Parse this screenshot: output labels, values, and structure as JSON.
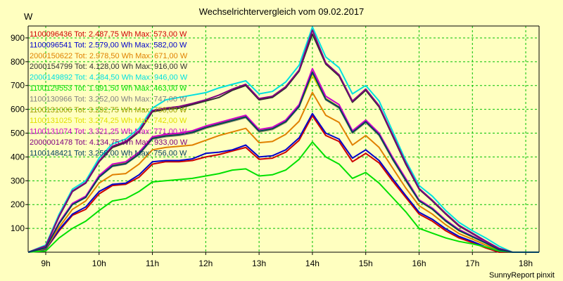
{
  "chart_data": {
    "type": "line",
    "title": "Wechselrichtervergleich vom 09.02.2017",
    "ylabel": "W",
    "ylim": [
      0,
      950
    ],
    "xlim": [
      8.67,
      18.25
    ],
    "y_ticks": [
      100,
      200,
      300,
      400,
      500,
      600,
      700,
      800,
      900
    ],
    "x_ticks": [
      9,
      10,
      11,
      12,
      13,
      14,
      15,
      16,
      17,
      18
    ],
    "x_tick_labels": [
      "9h",
      "10h",
      "11h",
      "12h",
      "13h",
      "14h",
      "15h",
      "16h",
      "17h",
      "18h"
    ],
    "grid": true,
    "legend_position": "top-left",
    "footer": "SunnyReport pinxit",
    "x": [
      8.67,
      9.0,
      9.25,
      9.5,
      9.75,
      10.0,
      10.25,
      10.5,
      10.75,
      11.0,
      11.25,
      11.5,
      11.75,
      12.0,
      12.25,
      12.5,
      12.75,
      13.0,
      13.25,
      13.5,
      13.75,
      14.0,
      14.25,
      14.5,
      14.75,
      15.0,
      15.25,
      15.5,
      15.75,
      16.0,
      16.25,
      16.5,
      16.75,
      17.0,
      17.25,
      17.5,
      17.75,
      18.0,
      18.25
    ],
    "series": [
      {
        "name": "1100096436 Tot: 2.487,75 Wh Max: 573,00 W",
        "color": "#cc0000",
        "values": [
          0,
          12,
          90,
          155,
          180,
          245,
          280,
          285,
          315,
          370,
          380,
          380,
          385,
          400,
          410,
          425,
          440,
          390,
          395,
          420,
          470,
          573,
          490,
          465,
          380,
          415,
          375,
          300,
          230,
          160,
          130,
          90,
          60,
          40,
          18,
          0,
          0,
          0,
          0
        ]
      },
      {
        "name": "1100096541 Tot: 2.579,00 Wh Max: 582,00 W",
        "color": "#0000cc",
        "values": [
          0,
          13,
          95,
          160,
          190,
          255,
          285,
          290,
          325,
          380,
          385,
          385,
          392,
          415,
          420,
          430,
          450,
          400,
          405,
          430,
          480,
          582,
          500,
          475,
          395,
          430,
          385,
          310,
          238,
          168,
          138,
          98,
          66,
          45,
          22,
          4,
          0,
          0,
          0
        ]
      },
      {
        "name": "2000150622 Tot: 2.978,50 Wh Max: 671,00 W",
        "color": "#e08000",
        "values": [
          0,
          15,
          105,
          180,
          215,
          290,
          325,
          330,
          370,
          430,
          440,
          445,
          450,
          470,
          490,
          505,
          520,
          460,
          465,
          495,
          550,
          671,
          575,
          545,
          450,
          490,
          440,
          355,
          270,
          195,
          160,
          115,
          78,
          55,
          30,
          8,
          0,
          0,
          0
        ]
      },
      {
        "name": "2000154799 Tot: 4.128,00 Wh Max: 916,00 W",
        "color": "#303030",
        "values": [
          0,
          25,
          150,
          255,
          290,
          380,
          440,
          460,
          505,
          590,
          600,
          605,
          620,
          635,
          650,
          680,
          700,
          640,
          650,
          690,
          760,
          916,
          790,
          740,
          630,
          680,
          610,
          490,
          370,
          265,
          215,
          160,
          110,
          78,
          45,
          15,
          0,
          0,
          0
        ]
      },
      {
        "name": "2000149892 Tot: 4.284,50 Wh Max: 946,00 W",
        "color": "#00e0e0",
        "values": [
          0,
          30,
          160,
          265,
          300,
          395,
          455,
          475,
          520,
          605,
          640,
          650,
          660,
          670,
          690,
          705,
          720,
          665,
          675,
          715,
          785,
          946,
          820,
          775,
          665,
          700,
          635,
          510,
          385,
          280,
          235,
          175,
          125,
          90,
          60,
          25,
          0,
          0,
          0
        ]
      },
      {
        "name": "1100129553 Tot: 1.991,50 Wh Max: 463,00 W",
        "color": "#00e000",
        "values": [
          0,
          5,
          60,
          100,
          130,
          175,
          215,
          225,
          255,
          295,
          300,
          305,
          310,
          320,
          330,
          345,
          350,
          320,
          325,
          345,
          390,
          463,
          400,
          370,
          310,
          335,
          290,
          230,
          170,
          100,
          80,
          60,
          45,
          35,
          22,
          5,
          0,
          0,
          0
        ]
      },
      {
        "name": "1100130966 Tot: 3.252,00 Wh Max: 747,00 W",
        "color": "#808080",
        "values": [
          0,
          18,
          120,
          200,
          230,
          315,
          360,
          370,
          410,
          475,
          485,
          490,
          500,
          520,
          535,
          550,
          565,
          505,
          515,
          545,
          610,
          747,
          640,
          605,
          500,
          545,
          490,
          390,
          300,
          215,
          180,
          130,
          90,
          64,
          38,
          10,
          0,
          0,
          0
        ]
      },
      {
        "name": "1100131006 Tot: 3.292,75 Wh Max: 758,00 W",
        "color": "#a0a000",
        "values": [
          0,
          18,
          122,
          202,
          232,
          318,
          365,
          375,
          415,
          480,
          490,
          495,
          505,
          525,
          540,
          555,
          570,
          510,
          520,
          550,
          615,
          758,
          645,
          610,
          505,
          550,
          495,
          395,
          305,
          218,
          182,
          132,
          92,
          66,
          40,
          11,
          0,
          0,
          0
        ]
      },
      {
        "name": "1100131025 Tot: 3.274,25 Wh Max: 742,00 W",
        "color": "#e0e000",
        "values": [
          0,
          18,
          121,
          200,
          230,
          316,
          362,
          372,
          412,
          477,
          487,
          492,
          502,
          522,
          537,
          552,
          567,
          507,
          517,
          547,
          612,
          742,
          642,
          607,
          502,
          547,
          492,
          392,
          302,
          216,
          180,
          130,
          90,
          64,
          38,
          10,
          0,
          0,
          0
        ]
      },
      {
        "name": "1100131074 Tot: 3.321,25 Wh Max: 771,00 W",
        "color": "#cc00cc",
        "values": [
          0,
          19,
          125,
          205,
          235,
          322,
          370,
          380,
          420,
          485,
          495,
          500,
          510,
          530,
          545,
          560,
          575,
          515,
          525,
          555,
          620,
          771,
          655,
          620,
          510,
          555,
          500,
          400,
          310,
          220,
          185,
          135,
          95,
          68,
          42,
          12,
          0,
          0,
          0
        ]
      },
      {
        "name": "2000001478 Tot: 4.134,75 Wh Max: 933,00 W",
        "color": "#800080",
        "values": [
          0,
          26,
          152,
          257,
          292,
          383,
          445,
          465,
          510,
          595,
          605,
          612,
          625,
          640,
          660,
          685,
          705,
          645,
          655,
          695,
          765,
          933,
          795,
          745,
          635,
          685,
          615,
          495,
          375,
          268,
          218,
          163,
          113,
          80,
          47,
          16,
          0,
          0,
          0
        ]
      },
      {
        "name": "1100148421 Tot: 3.258,00 Wh Max: 756,00 W",
        "color": "#004060",
        "values": [
          0,
          18,
          120,
          200,
          230,
          315,
          362,
          372,
          412,
          478,
          488,
          493,
          503,
          523,
          538,
          553,
          568,
          508,
          518,
          548,
          612,
          756,
          642,
          608,
          503,
          548,
          493,
          393,
          303,
          216,
          181,
          131,
          91,
          65,
          39,
          10,
          0,
          0,
          0
        ]
      }
    ]
  }
}
